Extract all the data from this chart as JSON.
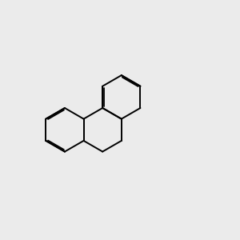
{
  "bg_color": "#ebebeb",
  "bond_color": "#000000",
  "o_color": "#ff0000",
  "br_color": "#cc7722",
  "figsize": [
    3.0,
    3.0
  ],
  "dpi": 100,
  "lw": 1.4,
  "lw_inner": 1.3,
  "font_size_label": 7.5,
  "font_size_br": 7.0
}
